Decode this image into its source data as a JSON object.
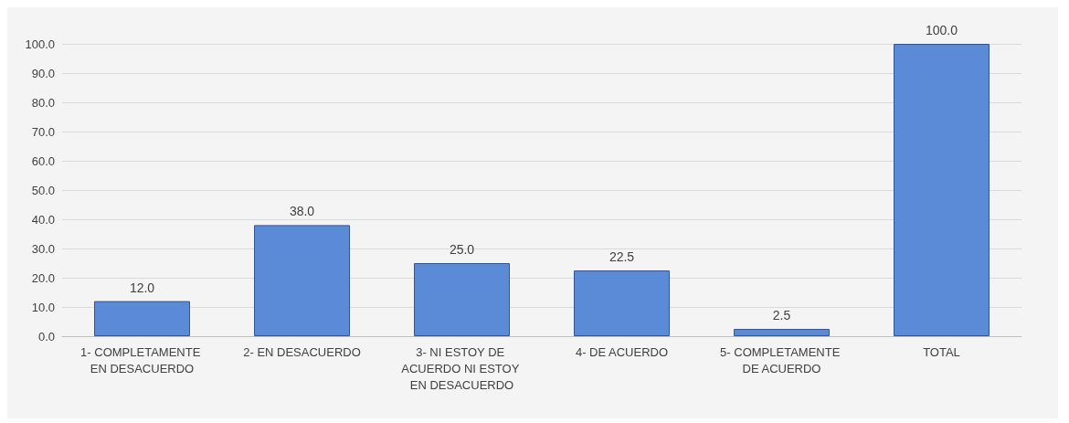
{
  "chart_data": {
    "type": "bar",
    "categories": [
      "1- COMPLETAMENTE EN DESACUERDO",
      "2- EN DESACUERDO",
      "3- NI ESTOY DE ACUERDO NI ESTOY EN DESACUERDO",
      "4- DE ACUERDO",
      "5- COMPLETAMENTE DE ACUERDO",
      "TOTAL"
    ],
    "values": [
      12.0,
      38.0,
      25.0,
      22.5,
      2.5,
      100.0
    ],
    "value_labels": [
      "12.0",
      "38.0",
      "25.0",
      "22.5",
      "2.5",
      "100.0"
    ],
    "color": "#5b8ad6",
    "ylim": [
      0,
      100
    ],
    "yticks": [
      {
        "value": 0,
        "label": "0.0"
      },
      {
        "value": 10,
        "label": "10.0"
      },
      {
        "value": 20,
        "label": "20.0"
      },
      {
        "value": 30,
        "label": "30.0"
      },
      {
        "value": 40,
        "label": "40.0"
      },
      {
        "value": 50,
        "label": "50.0"
      },
      {
        "value": 60,
        "label": "60.0"
      },
      {
        "value": 70,
        "label": "70.0"
      },
      {
        "value": 80,
        "label": "80.0"
      },
      {
        "value": 90,
        "label": "90.0"
      },
      {
        "value": 100,
        "label": "100.0"
      }
    ],
    "grid": "y"
  }
}
